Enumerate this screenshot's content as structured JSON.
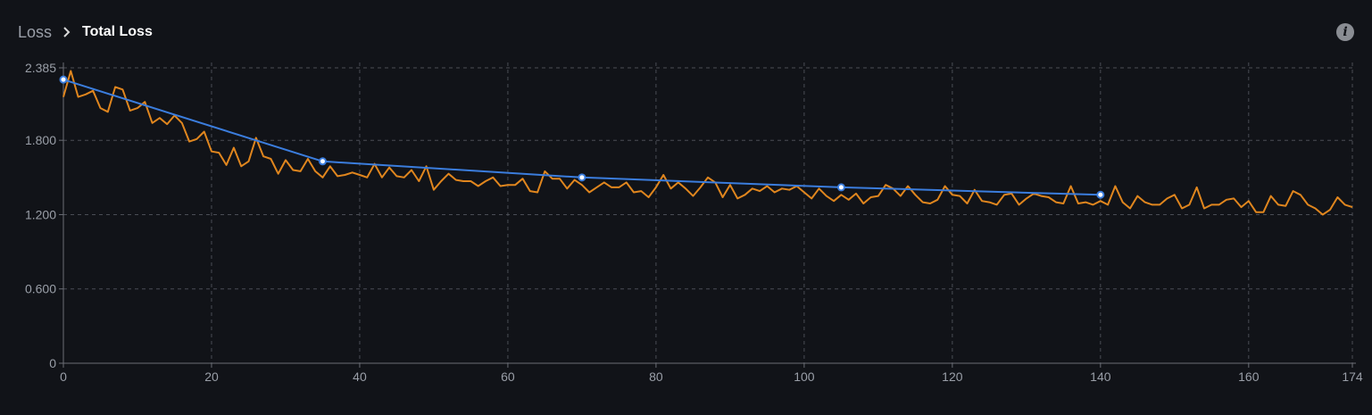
{
  "breadcrumb": {
    "parent": "Loss",
    "current": "Total Loss"
  },
  "icons": {
    "separator": "chevron-right-icon",
    "info": "info-icon"
  },
  "colors": {
    "background": "#111318",
    "raw": "#e0861e",
    "smoothed": "#3b7ddd",
    "grid": "#4a4d55"
  },
  "chart_data": {
    "type": "line",
    "xlim": [
      0,
      174
    ],
    "ylim": [
      0,
      2.385
    ],
    "x_ticks": [
      0,
      20,
      40,
      60,
      80,
      100,
      120,
      140,
      160,
      174
    ],
    "x_tick_labels": [
      "0",
      "20",
      "40",
      "60",
      "80",
      "100",
      "120",
      "140",
      "160",
      "174"
    ],
    "y_ticks": [
      0,
      0.6,
      1.2,
      1.8,
      2.385
    ],
    "y_tick_labels": [
      "0",
      "0.600",
      "1.200",
      "1.800",
      "2.385"
    ],
    "grid": true,
    "series": [
      {
        "color": "#e0861e",
        "x": [
          0,
          1,
          2,
          3,
          4,
          5,
          6,
          7,
          8,
          9,
          10,
          11,
          12,
          13,
          14,
          15,
          16,
          17,
          18,
          19,
          20,
          21,
          22,
          23,
          24,
          25,
          26,
          27,
          28,
          29,
          30,
          31,
          32,
          33,
          34,
          35,
          36,
          37,
          38,
          39,
          40,
          41,
          42,
          43,
          44,
          45,
          46,
          47,
          48,
          49,
          50,
          51,
          52,
          53,
          54,
          55,
          56,
          57,
          58,
          59,
          60,
          61,
          62,
          63,
          64,
          65,
          66,
          67,
          68,
          69,
          70,
          71,
          72,
          73,
          74,
          75,
          76,
          77,
          78,
          79,
          80,
          81,
          82,
          83,
          84,
          85,
          86,
          87,
          88,
          89,
          90,
          91,
          92,
          93,
          94,
          95,
          96,
          97,
          98,
          99,
          100,
          101,
          102,
          103,
          104,
          105,
          106,
          107,
          108,
          109,
          110,
          111,
          112,
          113,
          114,
          115,
          116,
          117,
          118,
          119,
          120,
          121,
          122,
          123,
          124,
          125,
          126,
          127,
          128,
          129,
          130,
          131,
          132,
          133,
          134,
          135,
          136,
          137,
          138,
          139,
          140,
          141,
          142,
          143,
          144,
          145,
          146,
          147,
          148,
          149,
          150,
          151,
          152,
          153,
          154,
          155,
          156,
          157,
          158,
          159,
          160,
          161,
          162,
          163,
          164,
          165,
          166,
          167,
          168,
          169,
          170,
          171,
          172,
          173,
          174
        ],
        "values": [
          2.15,
          2.36,
          2.15,
          2.17,
          2.2,
          2.06,
          2.03,
          2.23,
          2.21,
          2.04,
          2.06,
          2.11,
          1.94,
          1.98,
          1.93,
          2.0,
          1.94,
          1.79,
          1.81,
          1.87,
          1.71,
          1.7,
          1.6,
          1.74,
          1.59,
          1.63,
          1.82,
          1.67,
          1.65,
          1.53,
          1.64,
          1.56,
          1.55,
          1.65,
          1.55,
          1.5,
          1.59,
          1.51,
          1.52,
          1.54,
          1.52,
          1.5,
          1.61,
          1.5,
          1.58,
          1.51,
          1.5,
          1.56,
          1.47,
          1.59,
          1.4,
          1.47,
          1.53,
          1.48,
          1.47,
          1.47,
          1.43,
          1.47,
          1.5,
          1.43,
          1.44,
          1.44,
          1.49,
          1.39,
          1.38,
          1.55,
          1.49,
          1.49,
          1.41,
          1.48,
          1.44,
          1.38,
          1.42,
          1.46,
          1.42,
          1.42,
          1.46,
          1.38,
          1.39,
          1.34,
          1.42,
          1.52,
          1.41,
          1.46,
          1.41,
          1.35,
          1.42,
          1.5,
          1.46,
          1.34,
          1.44,
          1.33,
          1.36,
          1.41,
          1.39,
          1.43,
          1.38,
          1.41,
          1.4,
          1.43,
          1.38,
          1.33,
          1.41,
          1.35,
          1.31,
          1.36,
          1.32,
          1.37,
          1.29,
          1.34,
          1.35,
          1.44,
          1.41,
          1.35,
          1.43,
          1.36,
          1.3,
          1.29,
          1.32,
          1.43,
          1.36,
          1.35,
          1.29,
          1.4,
          1.31,
          1.3,
          1.28,
          1.36,
          1.37,
          1.28,
          1.33,
          1.37,
          1.35,
          1.34,
          1.3,
          1.29,
          1.43,
          1.29,
          1.3,
          1.28,
          1.31,
          1.28,
          1.43,
          1.3,
          1.25,
          1.35,
          1.3,
          1.28,
          1.28,
          1.33,
          1.36,
          1.25,
          1.28,
          1.42,
          1.25,
          1.28,
          1.28,
          1.32,
          1.33,
          1.26,
          1.31,
          1.22,
          1.22,
          1.35,
          1.28,
          1.27,
          1.39,
          1.36,
          1.28,
          1.25,
          1.2,
          1.24,
          1.34,
          1.28,
          1.26
        ]
      },
      {
        "color": "#3b7ddd",
        "x": [
          0,
          35,
          70,
          105,
          140
        ],
        "values": [
          2.29,
          1.63,
          1.5,
          1.42,
          1.36
        ],
        "markers": true
      }
    ]
  }
}
